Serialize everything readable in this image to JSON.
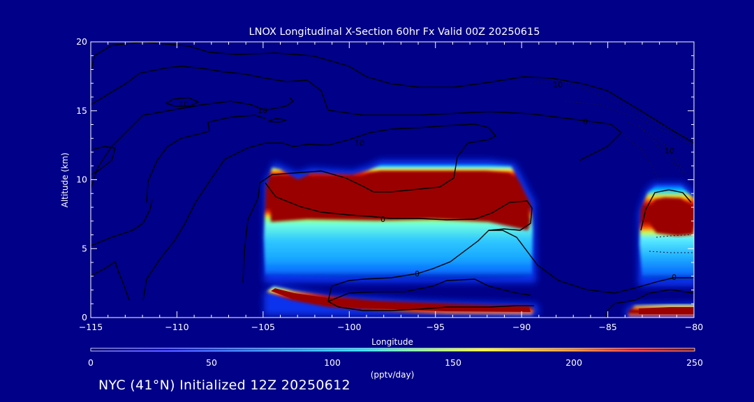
{
  "chart_data": {
    "type": "heatmap",
    "title": "LNOX Longitudinal X-Section 60hr  Fx Valid 00Z 20250615",
    "xlabel": "Longitude",
    "ylabel": "Altitude (km)",
    "xlim": [
      -115,
      -80
    ],
    "ylim": [
      0,
      20
    ],
    "x_ticks": [
      -115,
      -110,
      -105,
      -100,
      -95,
      -90,
      -85,
      -80
    ],
    "x_tick_labels": [
      "−115",
      "−110",
      "−105",
      "−100",
      "−95",
      "−90",
      "−85",
      "−80"
    ],
    "y_ticks": [
      0,
      5,
      10,
      15,
      20
    ],
    "y_tick_labels": [
      "0",
      "5",
      "10",
      "15",
      "20"
    ],
    "colorbar": {
      "label": "(pptv/day)",
      "min": 0,
      "max": 250,
      "ticks": [
        0,
        50,
        100,
        150,
        200,
        250
      ],
      "tick_labels": [
        "0",
        "50",
        "100",
        "150",
        "200",
        "250"
      ]
    },
    "lnox_regions": [
      {
        "name": "main-anvil",
        "x": [
          -105,
          -89.5
        ],
        "y": [
          2.6,
          11.4
        ],
        "peak": 250,
        "peak_y": [
          6.7,
          10.6
        ]
      },
      {
        "name": "low-level-band",
        "x": [
          -105,
          -89.5
        ],
        "y": [
          0.6,
          2.2
        ],
        "peak": 250
      },
      {
        "name": "east-core",
        "x": [
          -83.5,
          -80
        ],
        "y": [
          3.0,
          9.6
        ],
        "peak": 250,
        "peak_y": [
          6.4,
          8.6
        ]
      },
      {
        "name": "east-low-band",
        "x": [
          -83.5,
          -80
        ],
        "y": [
          0.2,
          1.0
        ],
        "peak": 250
      }
    ],
    "contour_labels": [
      "10",
      "10",
      "10",
      "10",
      "10",
      "0",
      "0",
      "0",
      "0"
    ],
    "grid": false
  },
  "footer": {
    "text": "NYC (41°N) Initialized 12Z 20250612"
  },
  "colors": {
    "background": "#000088",
    "contour": "#000000",
    "axis": "#ffffff",
    "colormap": [
      "#00008c",
      "#0000ff",
      "#0080ff",
      "#00e5ff",
      "#80ff80",
      "#ffff00",
      "#ff8000",
      "#ff0000",
      "#800000"
    ]
  }
}
